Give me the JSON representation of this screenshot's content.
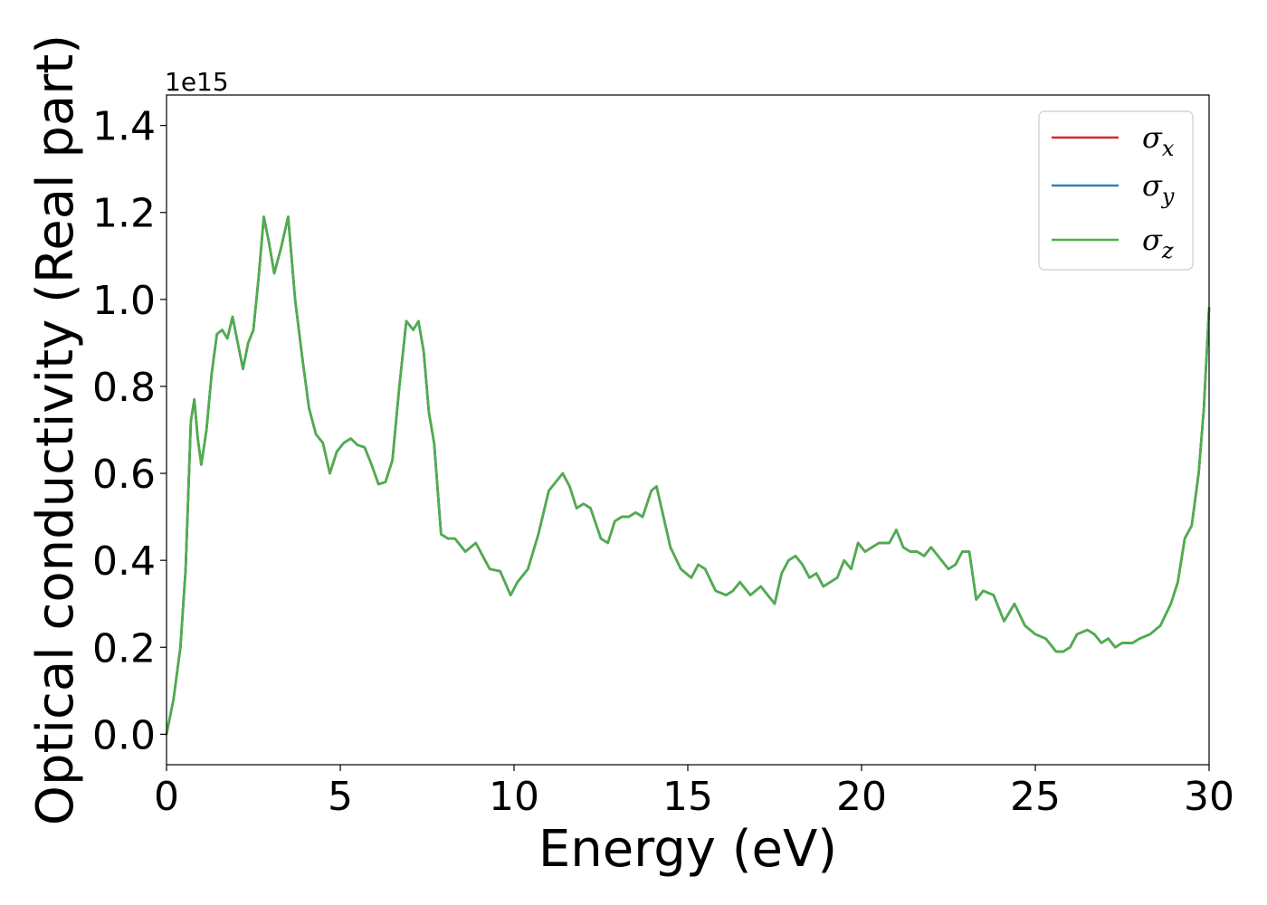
{
  "chart_data": {
    "type": "line",
    "xlabel": "Energy (eV)",
    "ylabel": "Optical conductivity (Real part)",
    "offset_text": "1e15",
    "xlim": [
      0,
      30
    ],
    "ylim": [
      -0.07,
      1.47
    ],
    "xticks": [
      0,
      5,
      10,
      15,
      20,
      25,
      30
    ],
    "xtick_labels": [
      "0",
      "5",
      "10",
      "15",
      "20",
      "25",
      "30"
    ],
    "yticks": [
      0.0,
      0.2,
      0.4,
      0.6,
      0.8,
      1.0,
      1.2,
      1.4
    ],
    "ytick_labels": [
      "0.0",
      "0.2",
      "0.4",
      "0.6",
      "0.8",
      "1.0",
      "1.2",
      "1.4"
    ],
    "grid": false,
    "legend_position": "top-right",
    "legend": [
      {
        "symbol": "σ",
        "sub": "x",
        "color": "#d62728"
      },
      {
        "symbol": "σ",
        "sub": "y",
        "color": "#377eb8"
      },
      {
        "symbol": "σ",
        "sub": "z",
        "color": "#4daf4a"
      }
    ],
    "x": [
      0,
      0.2,
      0.4,
      0.55,
      0.7,
      0.8,
      0.9,
      1.0,
      1.15,
      1.3,
      1.45,
      1.6,
      1.75,
      1.9,
      2.05,
      2.2,
      2.35,
      2.5,
      2.65,
      2.8,
      2.95,
      3.1,
      3.3,
      3.5,
      3.7,
      3.9,
      4.1,
      4.3,
      4.5,
      4.7,
      4.9,
      5.1,
      5.3,
      5.5,
      5.7,
      5.9,
      6.1,
      6.3,
      6.5,
      6.7,
      6.9,
      7.1,
      7.25,
      7.4,
      7.55,
      7.7,
      7.9,
      8.1,
      8.3,
      8.6,
      8.9,
      9.1,
      9.3,
      9.6,
      9.9,
      10.1,
      10.4,
      10.7,
      11.0,
      11.2,
      11.4,
      11.6,
      11.8,
      12.0,
      12.2,
      12.5,
      12.7,
      12.9,
      13.1,
      13.3,
      13.5,
      13.7,
      13.95,
      14.1,
      14.3,
      14.5,
      14.8,
      15.1,
      15.3,
      15.5,
      15.8,
      16.1,
      16.3,
      16.5,
      16.8,
      17.1,
      17.3,
      17.5,
      17.7,
      17.9,
      18.1,
      18.3,
      18.5,
      18.7,
      18.9,
      19.1,
      19.3,
      19.5,
      19.7,
      19.9,
      20.1,
      20.3,
      20.5,
      20.8,
      21.0,
      21.2,
      21.4,
      21.6,
      21.8,
      22.0,
      22.2,
      22.5,
      22.7,
      22.9,
      23.1,
      23.3,
      23.5,
      23.8,
      24.1,
      24.4,
      24.7,
      25.0,
      25.3,
      25.6,
      25.8,
      26.0,
      26.2,
      26.5,
      26.7,
      26.9,
      27.1,
      27.3,
      27.5,
      27.8,
      28.0,
      28.3,
      28.6,
      28.9,
      29.1,
      29.3,
      29.5,
      29.7,
      29.85,
      30.0
    ],
    "series": [
      {
        "name": "σx",
        "color": "#d62728",
        "values": [
          0.0,
          0.08,
          0.2,
          0.38,
          0.72,
          0.77,
          0.68,
          0.62,
          0.7,
          0.83,
          0.92,
          0.93,
          0.91,
          0.96,
          0.9,
          0.84,
          0.9,
          0.93,
          1.05,
          1.19,
          1.13,
          1.06,
          1.12,
          1.19,
          1.0,
          0.87,
          0.75,
          0.69,
          0.67,
          0.6,
          0.65,
          0.67,
          0.68,
          0.665,
          0.66,
          0.62,
          0.575,
          0.58,
          0.63,
          0.8,
          0.95,
          0.93,
          0.95,
          0.88,
          0.74,
          0.67,
          0.46,
          0.45,
          0.45,
          0.42,
          0.44,
          0.41,
          0.38,
          0.375,
          0.32,
          0.35,
          0.38,
          0.46,
          0.56,
          0.58,
          0.6,
          0.57,
          0.52,
          0.53,
          0.52,
          0.45,
          0.44,
          0.49,
          0.5,
          0.5,
          0.51,
          0.5,
          0.56,
          0.57,
          0.5,
          0.43,
          0.38,
          0.36,
          0.39,
          0.38,
          0.33,
          0.32,
          0.33,
          0.35,
          0.32,
          0.34,
          0.32,
          0.3,
          0.37,
          0.4,
          0.41,
          0.39,
          0.36,
          0.37,
          0.34,
          0.35,
          0.36,
          0.4,
          0.38,
          0.44,
          0.42,
          0.43,
          0.44,
          0.44,
          0.47,
          0.43,
          0.42,
          0.42,
          0.41,
          0.43,
          0.41,
          0.38,
          0.39,
          0.42,
          0.42,
          0.31,
          0.33,
          0.32,
          0.26,
          0.3,
          0.25,
          0.23,
          0.22,
          0.19,
          0.19,
          0.2,
          0.23,
          0.24,
          0.23,
          0.21,
          0.22,
          0.2,
          0.21,
          0.21,
          0.22,
          0.23,
          0.25,
          0.3,
          0.35,
          0.45,
          0.48,
          0.6,
          0.75,
          0.98
        ]
      },
      {
        "name": "σy",
        "color": "#377eb8",
        "values": [
          0.0,
          0.08,
          0.2,
          0.38,
          0.72,
          0.77,
          0.68,
          0.62,
          0.7,
          0.83,
          0.92,
          0.93,
          0.91,
          0.96,
          0.9,
          0.84,
          0.9,
          0.93,
          1.05,
          1.19,
          1.13,
          1.06,
          1.12,
          1.19,
          1.0,
          0.87,
          0.75,
          0.69,
          0.67,
          0.6,
          0.65,
          0.67,
          0.68,
          0.665,
          0.66,
          0.62,
          0.575,
          0.58,
          0.63,
          0.8,
          0.95,
          0.93,
          0.95,
          0.88,
          0.74,
          0.67,
          0.46,
          0.45,
          0.45,
          0.42,
          0.44,
          0.41,
          0.38,
          0.375,
          0.32,
          0.35,
          0.38,
          0.46,
          0.56,
          0.58,
          0.6,
          0.57,
          0.52,
          0.53,
          0.52,
          0.45,
          0.44,
          0.49,
          0.5,
          0.5,
          0.51,
          0.5,
          0.56,
          0.57,
          0.5,
          0.43,
          0.38,
          0.36,
          0.39,
          0.38,
          0.33,
          0.32,
          0.33,
          0.35,
          0.32,
          0.34,
          0.32,
          0.3,
          0.37,
          0.4,
          0.41,
          0.39,
          0.36,
          0.37,
          0.34,
          0.35,
          0.36,
          0.4,
          0.38,
          0.44,
          0.42,
          0.43,
          0.44,
          0.44,
          0.47,
          0.43,
          0.42,
          0.42,
          0.41,
          0.43,
          0.41,
          0.38,
          0.39,
          0.42,
          0.42,
          0.31,
          0.33,
          0.32,
          0.26,
          0.3,
          0.25,
          0.23,
          0.22,
          0.19,
          0.19,
          0.2,
          0.23,
          0.24,
          0.23,
          0.21,
          0.22,
          0.2,
          0.21,
          0.21,
          0.22,
          0.23,
          0.25,
          0.3,
          0.35,
          0.45,
          0.48,
          0.6,
          0.75,
          0.98
        ]
      },
      {
        "name": "σz",
        "color": "#4daf4a",
        "values": [
          0.0,
          0.08,
          0.2,
          0.38,
          0.72,
          0.77,
          0.68,
          0.62,
          0.7,
          0.83,
          0.92,
          0.93,
          0.91,
          0.96,
          0.9,
          0.84,
          0.9,
          0.93,
          1.05,
          1.19,
          1.13,
          1.06,
          1.12,
          1.19,
          1.0,
          0.87,
          0.75,
          0.69,
          0.67,
          0.6,
          0.65,
          0.67,
          0.68,
          0.665,
          0.66,
          0.62,
          0.575,
          0.58,
          0.63,
          0.8,
          0.95,
          0.93,
          0.95,
          0.88,
          0.74,
          0.67,
          0.46,
          0.45,
          0.45,
          0.42,
          0.44,
          0.41,
          0.38,
          0.375,
          0.32,
          0.35,
          0.38,
          0.46,
          0.56,
          0.58,
          0.6,
          0.57,
          0.52,
          0.53,
          0.52,
          0.45,
          0.44,
          0.49,
          0.5,
          0.5,
          0.51,
          0.5,
          0.56,
          0.57,
          0.5,
          0.43,
          0.38,
          0.36,
          0.39,
          0.38,
          0.33,
          0.32,
          0.33,
          0.35,
          0.32,
          0.34,
          0.32,
          0.3,
          0.37,
          0.4,
          0.41,
          0.39,
          0.36,
          0.37,
          0.34,
          0.35,
          0.36,
          0.4,
          0.38,
          0.44,
          0.42,
          0.43,
          0.44,
          0.44,
          0.47,
          0.43,
          0.42,
          0.42,
          0.41,
          0.43,
          0.41,
          0.38,
          0.39,
          0.42,
          0.42,
          0.31,
          0.33,
          0.32,
          0.26,
          0.3,
          0.25,
          0.23,
          0.22,
          0.19,
          0.19,
          0.2,
          0.23,
          0.24,
          0.23,
          0.21,
          0.22,
          0.2,
          0.21,
          0.21,
          0.22,
          0.23,
          0.25,
          0.3,
          0.35,
          0.45,
          0.48,
          0.6,
          0.75,
          0.98
        ]
      }
    ]
  }
}
